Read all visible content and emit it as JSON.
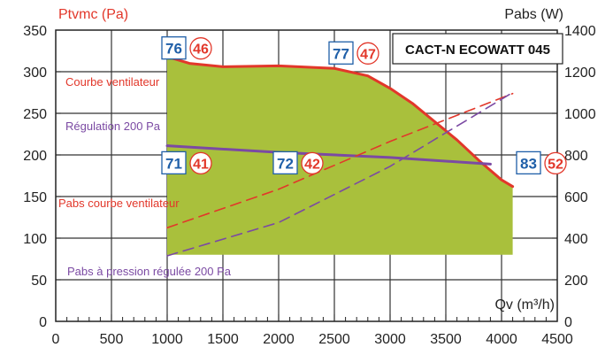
{
  "chart_data": {
    "type": "area",
    "title": "CACT-N ECOWATT 045",
    "xlabel": "Qv (m³/h)",
    "ylabel_left": "Ptvmc (Pa)",
    "ylabel_right": "Pabs (W)",
    "xlim": [
      0,
      4500
    ],
    "ylim_left": [
      0,
      350
    ],
    "ylim_right": [
      0,
      1400
    ],
    "x_ticks": [
      "0",
      "500",
      "1000",
      "1500",
      "2000",
      "2500",
      "3000",
      "3500",
      "4000",
      "4500"
    ],
    "y_ticks_left": [
      "0",
      "50",
      "100",
      "150",
      "200",
      "250",
      "300",
      "350"
    ],
    "y_ticks_right": [
      "0",
      "200",
      "400",
      "600",
      "800",
      "1000",
      "1200",
      "1400"
    ],
    "grid": true,
    "colors": {
      "fan_curve": "#e2372a",
      "regulation": "#7b4aa3",
      "operating_area": "#a9c03c",
      "badge_blue": "#1f5fa8",
      "badge_red": "#e2372a"
    },
    "series": [
      {
        "name": "Courbe ventilateur",
        "axis": "left",
        "style": "solid",
        "points": [
          [
            1000,
            318
          ],
          [
            1200,
            310
          ],
          [
            1500,
            306
          ],
          [
            2000,
            307
          ],
          [
            2500,
            304
          ],
          [
            2800,
            295
          ],
          [
            3000,
            280
          ],
          [
            3200,
            262
          ],
          [
            3400,
            240
          ],
          [
            3600,
            218
          ],
          [
            3800,
            193
          ],
          [
            4000,
            170
          ],
          [
            4100,
            162
          ]
        ]
      },
      {
        "name": "Régulation 200 Pa",
        "axis": "left",
        "style": "solid",
        "points": [
          [
            1000,
            211
          ],
          [
            2000,
            203
          ],
          [
            3000,
            197
          ],
          [
            3900,
            189
          ]
        ]
      },
      {
        "name": "Pabs courbe ventilateur",
        "axis": "right",
        "style": "dashed",
        "points": [
          [
            1000,
            450
          ],
          [
            2000,
            635
          ],
          [
            3000,
            865
          ],
          [
            4100,
            1095
          ]
        ]
      },
      {
        "name": "Pabs à pression régulée 200 Pa",
        "axis": "right",
        "style": "dashed",
        "points": [
          [
            1000,
            315
          ],
          [
            2000,
            475
          ],
          [
            3000,
            745
          ],
          [
            4100,
            1100
          ]
        ]
      }
    ],
    "operating_area": {
      "lower_bound_pa": 80,
      "x_range": [
        1000,
        4100
      ]
    },
    "annotations": [
      {
        "blue": "76",
        "red": "46",
        "x": 1000,
        "y": 328
      },
      {
        "blue": "77",
        "red": "47",
        "x": 2500,
        "y": 322
      },
      {
        "blue": "71",
        "red": "41",
        "x": 1000,
        "y": 190
      },
      {
        "blue": "72",
        "red": "42",
        "x": 2000,
        "y": 190
      },
      {
        "blue": "83",
        "red": "52",
        "x": 4000,
        "y": 190
      }
    ]
  }
}
